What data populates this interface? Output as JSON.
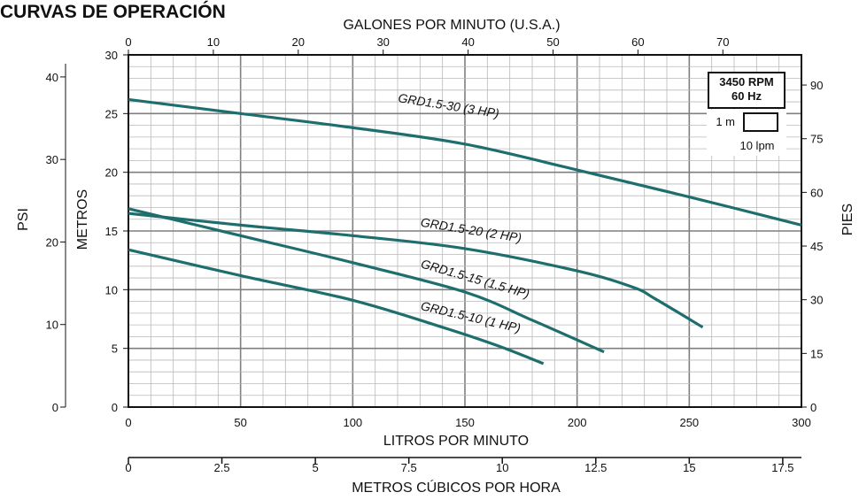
{
  "title": "CURVAS DE OPERACIÓN",
  "chart_data": {
    "type": "line",
    "x_axis": {
      "label": "LITROS POR MINUTO",
      "range": [
        0,
        300
      ],
      "ticks": [
        0,
        50,
        100,
        150,
        200,
        250,
        300
      ]
    },
    "x2_axis": {
      "label": "GALONES POR MINUTO (U.S.A.)",
      "range": [
        0,
        79.25
      ],
      "ticks": [
        0,
        10,
        20,
        30,
        40,
        50,
        60,
        70
      ]
    },
    "x3_axis": {
      "label": "METROS CÚBICOS POR HORA",
      "range": [
        0,
        18
      ],
      "ticks": [
        "0",
        "2.5",
        "5",
        "7.5",
        "10",
        "12.5",
        "15",
        "17.5"
      ]
    },
    "y_axis": {
      "label": "METROS",
      "range": [
        0,
        30
      ],
      "ticks": [
        0,
        5,
        10,
        15,
        20,
        25,
        30
      ]
    },
    "y_left_outer": {
      "label": "PSI",
      "range": [
        0,
        42.67
      ],
      "ticks": [
        0,
        10,
        20,
        30,
        40
      ]
    },
    "y_right": {
      "label": "PIES",
      "range": [
        0,
        98.4
      ],
      "ticks": [
        0,
        15,
        30,
        45,
        60,
        75,
        90
      ]
    },
    "grid": true,
    "series": [
      {
        "name": "GRD1.5-30 (3 HP)",
        "x": [
          0,
          50,
          100,
          150,
          200,
          250,
          300
        ],
        "y": [
          26.2,
          25.0,
          23.8,
          22.4,
          20.2,
          17.9,
          15.5
        ]
      },
      {
        "name": "GRD1.5-20 (2 HP)",
        "x": [
          0,
          50,
          100,
          150,
          200,
          225,
          235,
          256
        ],
        "y": [
          16.5,
          15.5,
          14.6,
          13.5,
          11.6,
          10.2,
          9.2,
          6.8
        ]
      },
      {
        "name": "GRD1.5-15 (1.5 HP)",
        "x": [
          0,
          50,
          100,
          150,
          180,
          212
        ],
        "y": [
          16.9,
          14.6,
          12.3,
          9.8,
          7.4,
          4.7
        ]
      },
      {
        "name": "GRD1.5-10 (1 HP)",
        "x": [
          0,
          50,
          100,
          140,
          165,
          185
        ],
        "y": [
          13.4,
          11.2,
          9.1,
          6.8,
          5.2,
          3.7
        ]
      }
    ],
    "legend": {
      "rpm": "3450 RPM",
      "hz": "60 Hz",
      "scale_v": "1 m",
      "scale_h": "10 lpm"
    }
  },
  "colors": {
    "curve": "#1e6e6e",
    "grid_minor": "#b9b9b9",
    "grid_major": "#7f7f7f"
  }
}
